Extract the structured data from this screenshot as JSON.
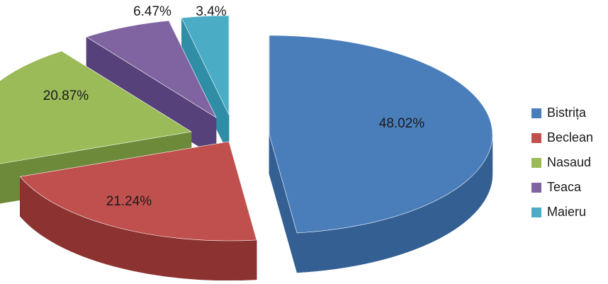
{
  "chart_data": {
    "type": "pie",
    "style": "3d-exploded",
    "categories": [
      "Bistrița",
      "Beclean",
      "Nasaud",
      "Teaca",
      "Maieru"
    ],
    "values": [
      48.02,
      21.24,
      20.87,
      6.47,
      3.4
    ],
    "data_labels": [
      "48.02%",
      "21.24%",
      "20.87%",
      "6.47%",
      "3.4%"
    ],
    "colors": [
      "#4a7ebb",
      "#c0504d",
      "#9bbb59",
      "#8064a2",
      "#4bacc6"
    ],
    "side_colors": [
      "#345f93",
      "#8c3331",
      "#6d8a3a",
      "#56417a",
      "#2f8ea6"
    ],
    "legend_position": "right",
    "grid": false
  }
}
